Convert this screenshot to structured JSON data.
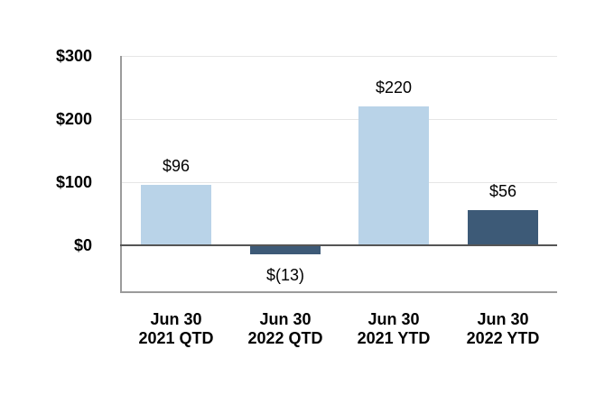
{
  "chart_data": {
    "type": "bar",
    "title": "",
    "xlabel": "",
    "ylabel": "",
    "categories": [
      "Jun 30\n2021 QTD",
      "Jun 30\n2022 QTD",
      "Jun 30\n2021 YTD",
      "Jun 30\n2022 YTD"
    ],
    "values": [
      96,
      -13,
      220,
      56
    ],
    "data_labels": [
      "$96",
      "$(13)",
      "$220",
      "$56"
    ],
    "bar_color_keys": [
      "light_blue",
      "dark_blue",
      "light_blue",
      "dark_blue"
    ],
    "y_ticks": [
      {
        "value": 0,
        "label": "$0"
      },
      {
        "value": 100,
        "label": "$100"
      },
      {
        "value": 200,
        "label": "$200"
      },
      {
        "value": 300,
        "label": "$300"
      }
    ],
    "ylim": [
      -75,
      300
    ],
    "grid": true,
    "legend": false,
    "colors": {
      "light_blue": "#B9D3E8",
      "dark_blue": "#3D5A77",
      "gridline": "#E6E6E6",
      "zero_line": "#555555",
      "frame_line": "#9B9B9B",
      "text": "#000000",
      "background": "#FFFFFF"
    }
  }
}
